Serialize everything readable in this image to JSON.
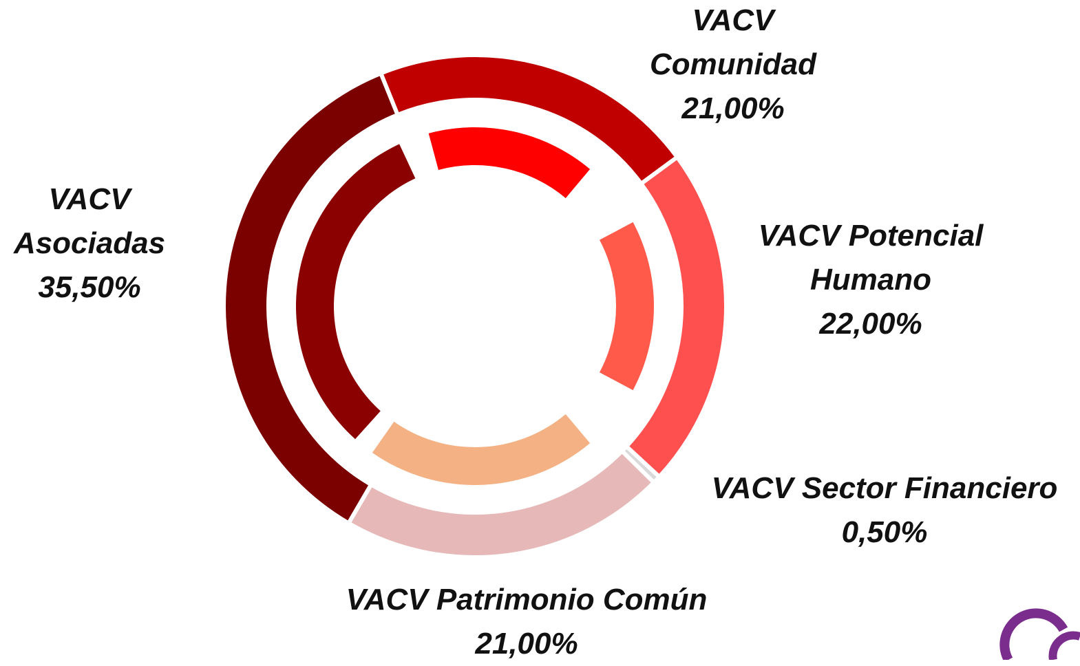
{
  "chart_data": {
    "type": "donut",
    "categories": [
      "VACV Comunidad",
      "VACV Potencial Humano",
      "VACV Sector Financiero",
      "VACV Patrimonio Común",
      "VACV Asociadas"
    ],
    "values": [
      21,
      22,
      0.5,
      21,
      35.5
    ],
    "value_labels": [
      "21,00%",
      "22,00%",
      "0,50%",
      "21,00%",
      "35,50%"
    ],
    "colors": [
      "#c00000",
      "#ff5050",
      "#d9d9d9",
      "#e6b9b8",
      "#7b0000"
    ]
  }
}
